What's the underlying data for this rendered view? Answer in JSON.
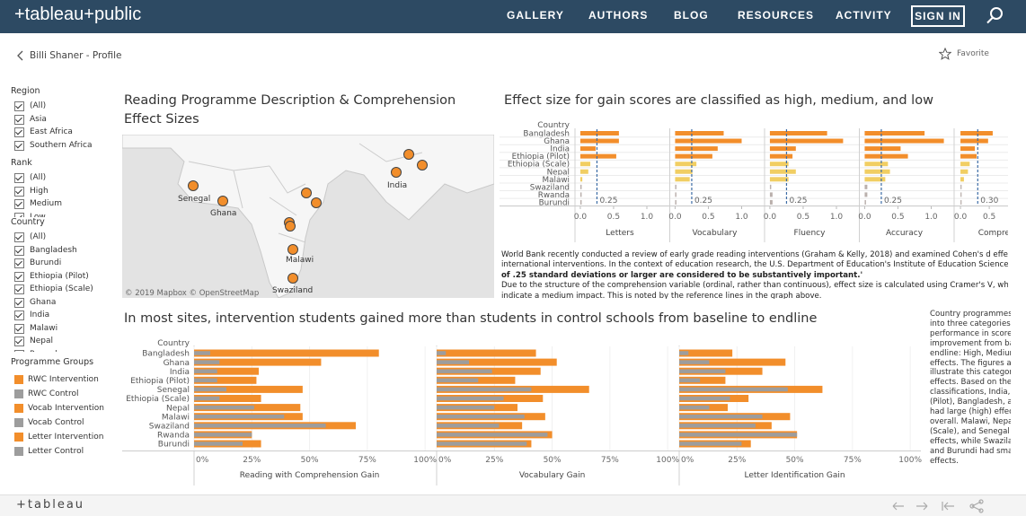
{
  "nav": {
    "logo": "+tableau+public",
    "items": [
      "GALLERY",
      "AUTHORS",
      "BLOG",
      "RESOURCES",
      "ACTIVITY"
    ],
    "sign_in": "SIGN IN"
  },
  "profile_link": "Billi Shaner - Profile",
  "favorite": "Favorite",
  "filters": [
    {
      "title": "Region",
      "options": [
        "(All)",
        "Asia",
        "East Africa",
        "Southern Africa"
      ]
    },
    {
      "title": "Rank",
      "options": [
        "(All)",
        "High",
        "Medium",
        "Low"
      ]
    },
    {
      "title": "Country",
      "options": [
        "(All)",
        "Bangladesh",
        "Burundi",
        "Ethiopia (Pilot)",
        "Ethiopia (Scale)",
        "Ghana",
        "India",
        "Malawi",
        "Nepal",
        "Rwanda"
      ]
    }
  ],
  "legend": {
    "title": "Programme Groups",
    "items": [
      {
        "name": "RWC Intervention",
        "color": "#f28e2b"
      },
      {
        "name": "RWC Control",
        "color": "#9d9d9d"
      },
      {
        "name": "Vocab Intervention",
        "color": "#f28e2b"
      },
      {
        "name": "Vocab Control",
        "color": "#9d9d9d"
      },
      {
        "name": "Letter Intervention",
        "color": "#f28e2b"
      },
      {
        "name": "Letter Control",
        "color": "#9d9d9d"
      }
    ]
  },
  "map": {
    "title": "Reading Programme Description & Comprehension Effect Sizes",
    "labels": [
      "Senegal",
      "Ghana",
      "India",
      "Malawi",
      "Swaziland"
    ],
    "attribution": "© 2019 Mapbox © OpenStreetMap"
  },
  "effect_chart": {
    "title": "Effect size for gain scores are classified as high, medium, and low",
    "category_label": "Country",
    "categories": [
      "Bangladesh",
      "Ghana",
      "India",
      "Ethiopia (Pilot)",
      "Ethiopia (Scale)",
      "Nepal",
      "Malawi",
      "Swaziland",
      "Rwanda",
      "Burundi"
    ],
    "colors": [
      "#f28e2b",
      "#f28e2b",
      "#f28e2b",
      "#f28e2b",
      "#f1ce63",
      "#f1ce63",
      "#f1ce63",
      "#bab0ac",
      "#bab0ac",
      "#bab0ac"
    ],
    "reference_color": "#3b6ba5",
    "panels": [
      {
        "name": "Letters",
        "xlim": [
          -0.08,
          1.27
        ],
        "xticks": [
          {
            "value": 0,
            "label": "0.0"
          },
          0.5,
          {
            "value": 1,
            "label": "1.0"
          }
        ],
        "reference": 0.25,
        "values": [
          0.58,
          0.58,
          0.23,
          0.54,
          0.15,
          0.12,
          0.03,
          0.02,
          0.02,
          0.02
        ]
      },
      {
        "name": "Vocabulary",
        "xlim": [
          -0.08,
          1.27
        ],
        "xticks": [
          {
            "value": 0,
            "label": "0.0"
          },
          0.5,
          {
            "value": 1,
            "label": "1.0"
          }
        ],
        "reference": 0.25,
        "values": [
          0.73,
          1.0,
          0.64,
          0.56,
          0.32,
          0.26,
          0.22,
          0.02,
          0.02,
          0.02
        ]
      },
      {
        "name": "Fluency",
        "xlim": [
          -0.08,
          1.27
        ],
        "xticks": [
          {
            "value": 0,
            "label": "0.0"
          },
          0.5,
          {
            "value": 1,
            "label": "1.0"
          }
        ],
        "reference": 0.25,
        "values": [
          0.86,
          1.1,
          0.39,
          0.34,
          0.28,
          0.39,
          0.28,
          0.02,
          0.04,
          0.04
        ]
      },
      {
        "name": "Accuracy",
        "xlim": [
          -0.08,
          1.27
        ],
        "xticks": [
          {
            "value": 0,
            "label": "0.0"
          },
          0.5,
          {
            "value": 1,
            "label": "1.0"
          }
        ],
        "reference": 0.25,
        "values": [
          0.9,
          1.19,
          0.54,
          0.65,
          0.35,
          0.38,
          0.31,
          0.04,
          0.04,
          0.02
        ]
      },
      {
        "name": "Comprehe",
        "xlim": [
          -0.11,
          1.45
        ],
        "xticks": [
          {
            "value": 0,
            "label": "0.0"
          },
          0.5
        ],
        "reference": {
          "value": 0.3,
          "label": "0.30"
        },
        "values": [
          0.56,
          0.48,
          0.25,
          0.28,
          0.16,
          0.13,
          0.06,
          0.02,
          0.02,
          0.02
        ]
      }
    ]
  },
  "note": {
    "lines": [
      {
        "text": "World Bank recently conducted a review of early grade reading interventions (Graham & Kelly, 2018) and examined Cohen's d effect sizes across s",
        "bold": false
      },
      {
        "text": "international interventions. In the context of education research, the U.S. Department of Education's Institute of Education Sciences advises that '",
        "bold": false
      },
      {
        "text": "of .25 standard deviations or larger are considered to be substantively important.'",
        "bold": true
      },
      {
        "text": "Due to the structure of the comprehension variable (ordinal, rather than continuous), effect size is calculated using Cramer's V, where values abov",
        "bold": false
      },
      {
        "text": "indicate a medium impact. This is noted by the reference lines in the graph above.",
        "bold": false
      }
    ]
  },
  "gain_chart": {
    "title": "In most sites, intervention students gained more than students in control schools from baseline to endline",
    "category_label": "Country",
    "categories": [
      "Bangladesh",
      "Ghana",
      "India",
      "Ethiopia (Pilot)",
      "Senegal",
      "Ethiopia (Scale)",
      "Nepal",
      "Malawi",
      "Swaziland",
      "Rwanda",
      "Burundi"
    ],
    "xlim": [
      0,
      105
    ],
    "xticks": [
      {
        "value": 0,
        "label": "0%"
      },
      {
        "value": 25,
        "label": "25%"
      },
      {
        "value": 50,
        "label": "50%"
      },
      {
        "value": 75,
        "label": "75%"
      },
      {
        "value": 100,
        "label": "100%"
      }
    ],
    "panels": [
      {
        "name": "Reading with Comprehension Gain",
        "series": [
          {
            "color": "#f28e2b",
            "values": [
              80,
              55,
              28,
              27,
              47,
              29,
              46,
              47,
              70,
              25,
              29
            ]
          },
          {
            "color": "#9d9d9d",
            "values": [
              7,
              11,
              10,
              10,
              14,
              11,
              26,
              39,
              57,
              25,
              21
            ]
          }
        ]
      },
      {
        "name": "Vocabulary Gain",
        "series": [
          {
            "color": "#f28e2b",
            "values": [
              43,
              52,
              45,
              34,
              66,
              46,
              35,
              47,
              37,
              50,
              41
            ]
          },
          {
            "color": "#9d9d9d",
            "values": [
              4,
              14,
              24,
              18,
              41,
              29,
              25,
              38,
              27,
              48,
              39
            ]
          }
        ]
      },
      {
        "name": "Letter Identification Gain",
        "series": [
          {
            "color": "#f28e2b",
            "values": [
              23,
              46,
              36,
              20,
              62,
              30,
              21,
              48,
              40,
              51,
              31
            ]
          },
          {
            "color": "#9d9d9d",
            "values": [
              4,
              13,
              20,
              9,
              47,
              22,
              13,
              36,
              33,
              51,
              27
            ]
          }
        ]
      }
    ]
  },
  "side_note": {
    "lines": [
      "Country programmes r",
      "into three categories o",
      "performance in score",
      "improvement from bas",
      "endline: High, Medium",
      "effects. The figures abo",
      "illustrate this categoriz",
      "effects. Based on these",
      "classifications, India, E",
      "(Pilot), Bangladesh, an",
      "had large (high) effects",
      "overall. Malawi, Nepal",
      "(Scale), and Senegal ha",
      "effects, while Swazilan",
      "and Burundi had small",
      "effects."
    ]
  },
  "footer": {
    "logo": "+tableau"
  }
}
